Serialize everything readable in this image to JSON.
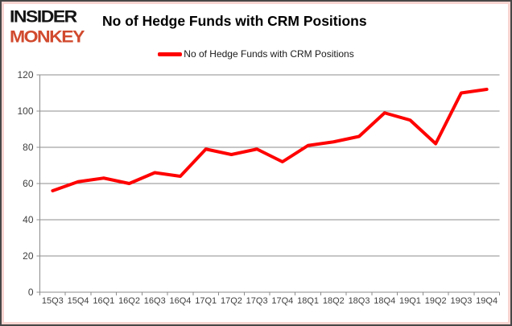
{
  "header": {
    "logo_line1": "INSIDER",
    "logo_line2": "MONKEY",
    "title": "No of Hedge Funds with CRM Positions"
  },
  "legend": {
    "label": "No of Hedge Funds with CRM Positions"
  },
  "colors": {
    "line": "#ff0000",
    "logo_accent": "#d14a2e",
    "grid": "#8c8c8c",
    "axis_label": "#3f3f3f"
  },
  "chart_data": {
    "type": "line",
    "title": "No of Hedge Funds with CRM Positions",
    "categories": [
      "15Q3",
      "15Q4",
      "16Q1",
      "16Q2",
      "16Q3",
      "16Q4",
      "17Q1",
      "17Q2",
      "17Q3",
      "17Q4",
      "18Q1",
      "18Q2",
      "18Q3",
      "18Q4",
      "19Q1",
      "19Q2",
      "19Q3",
      "19Q4"
    ],
    "series": [
      {
        "name": "No of Hedge Funds with CRM Positions",
        "values": [
          56,
          61,
          63,
          60,
          66,
          64,
          79,
          76,
          79,
          72,
          81,
          83,
          86,
          99,
          95,
          82,
          110,
          112
        ]
      }
    ],
    "xlabel": "",
    "ylabel": "",
    "ylim": [
      0,
      120
    ],
    "ytick_step": 20,
    "grid": true,
    "legend_position": "top"
  }
}
